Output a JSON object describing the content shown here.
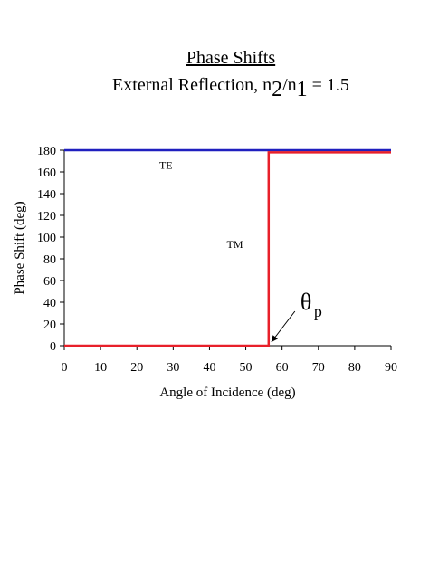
{
  "chart_data": {
    "type": "line",
    "title": "Phase Shifts",
    "subtitle": {
      "prefix": "External Reflection, n",
      "sub1": "2",
      "middle": "/n",
      "sub2": "1",
      "suffix": " = 1.5"
    },
    "xlabel": "Angle of Incidence (deg)",
    "ylabel": "Phase Shift (deg)",
    "xlim": [
      0,
      90
    ],
    "ylim": [
      0,
      180
    ],
    "xticks": [
      "0",
      "10",
      "20",
      "30",
      "40",
      "50",
      "60",
      "70",
      "80",
      "90"
    ],
    "yticks": [
      "0",
      "20",
      "40",
      "60",
      "80",
      "100",
      "120",
      "140",
      "160",
      "180"
    ],
    "grid": false,
    "series": [
      {
        "name": "TE",
        "color": "#1f1fbf",
        "x": [
          0,
          90
        ],
        "y": [
          180,
          180
        ],
        "label_at": [
          28,
          163
        ]
      },
      {
        "name": "TM",
        "color": "#e8202a",
        "x": [
          0,
          56.3,
          56.3,
          90
        ],
        "y": [
          0,
          0,
          178,
          178
        ],
        "label_at": [
          47,
          90
        ]
      }
    ],
    "annotation": {
      "text": "θ",
      "sub": "p",
      "points_to": [
        56.3,
        0
      ]
    }
  }
}
